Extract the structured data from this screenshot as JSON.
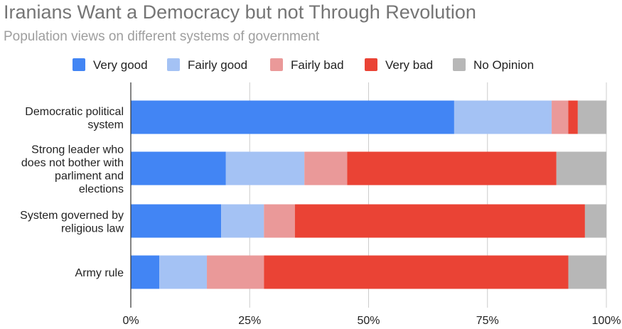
{
  "chart_data": {
    "type": "bar",
    "orientation": "horizontal",
    "stacked": "percent",
    "title": "Iranians Want a Democracy but not Through Revolution",
    "subtitle": "Population views on different systems of government",
    "legend_position": "top",
    "grid": true,
    "xlim": [
      0,
      100
    ],
    "x_ticks": [
      "0%",
      "25%",
      "50%",
      "75%",
      "100%"
    ],
    "categories": [
      [
        "Democratic political",
        "system"
      ],
      [
        "Strong leader who",
        "does not bother with",
        "parliment and",
        "elections"
      ],
      [
        "System governed by",
        "religious law"
      ],
      [
        "Army rule"
      ]
    ],
    "series": [
      {
        "name": "Very good",
        "color": "#4285f4",
        "values": [
          68,
          20,
          19,
          6
        ]
      },
      {
        "name": "Fairly good",
        "color": "#a4c2f4",
        "values": [
          20.5,
          16.5,
          9,
          10
        ]
      },
      {
        "name": "Fairly bad",
        "color": "#ea9999",
        "values": [
          3.5,
          9,
          6.5,
          12
        ]
      },
      {
        "name": "Very bad",
        "color": "#ea4335",
        "values": [
          2,
          44,
          61,
          64
        ]
      },
      {
        "name": "No Opinion",
        "color": "#b7b7b7",
        "values": [
          6,
          10.5,
          4.5,
          8
        ]
      }
    ]
  }
}
